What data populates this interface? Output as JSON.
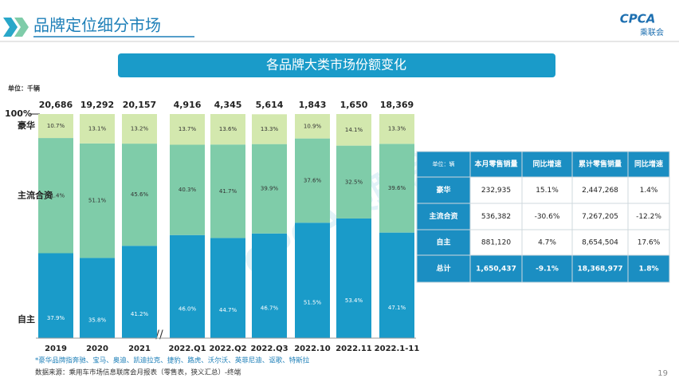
{
  "header": {
    "title": "品牌定位细分市场",
    "logo": "CPCA",
    "logo_sub": "乘联会"
  },
  "chart_data": {
    "type": "bar",
    "stacked": true,
    "title": "各品牌大类市场份额变化",
    "unit": "单位：千辆",
    "categories": [
      "2019",
      "2020",
      "2021",
      "2022.Q1",
      "2022.Q2",
      "2022.Q3",
      "2022.10",
      "2022.11",
      "2022.1-11"
    ],
    "totals": {
      "values": [
        20686,
        19292,
        20157,
        4916,
        4345,
        5614,
        1843,
        1650,
        18369
      ],
      "value_labels": [
        "20,686",
        "19,292",
        "20,157",
        "4,916",
        "4,345",
        "5,614",
        "1,843",
        "1,650",
        "18,369"
      ]
    },
    "series": [
      {
        "name": "自主",
        "color": "#1a9bc9",
        "values": [
          37.9,
          35.8,
          41.2,
          46.0,
          44.7,
          46.7,
          51.5,
          53.4,
          47.1
        ],
        "value_labels": [
          "37.9%",
          "35.8%",
          "41.2%",
          "46.0%",
          "44.7%",
          "46.7%",
          "51.5%",
          "53.4%",
          "47.1%"
        ]
      },
      {
        "name": "主流合资",
        "color": "#7fcca9",
        "values": [
          51.4,
          51.1,
          45.6,
          40.3,
          41.7,
          39.9,
          37.6,
          32.5,
          39.6
        ],
        "value_labels": [
          "51.4%",
          "51.1%",
          "45.6%",
          "40.3%",
          "41.7%",
          "39.9%",
          "37.6%",
          "32.5%",
          "39.6%"
        ]
      },
      {
        "name": "豪华",
        "color": "#d3e8ae",
        "values": [
          10.7,
          13.1,
          13.2,
          13.7,
          13.6,
          13.3,
          10.9,
          14.1,
          13.3
        ],
        "value_labels": [
          "10.7%",
          "13.1%",
          "13.2%",
          "13.7%",
          "13.6%",
          "13.3%",
          "10.9%",
          "14.1%",
          "13.3%"
        ]
      }
    ],
    "ylim": [
      0,
      100
    ],
    "yticks": [
      {
        "value": 100,
        "label": "100%"
      }
    ],
    "notes": [
      "*豪华品牌指奔驰、宝马、奥迪、凯迪拉克、捷豹、路虎、沃尔沃、英菲尼迪、讴歌、特斯拉",
      "数据来源：乘用车市场信息联席会月报表（零售表，狭义汇总）-终端"
    ]
  },
  "table": {
    "header": [
      "单位：辆",
      "本月零售销量",
      "同比增速",
      "累计零售销量",
      "同比增速"
    ],
    "rows": [
      [
        "豪华",
        "232,935",
        "15.1%",
        "2,447,268",
        "1.4%"
      ],
      [
        "主流合资",
        "536,382",
        "-30.6%",
        "7,267,205",
        "-12.2%"
      ],
      [
        "自主",
        "881,120",
        "4.7%",
        "8,654,504",
        "17.6%"
      ],
      [
        "总计",
        "1,650,437",
        "-9.1%",
        "18,368,977",
        "1.8%"
      ]
    ]
  },
  "watermark": "CPCA乘联会",
  "page_number": "19"
}
